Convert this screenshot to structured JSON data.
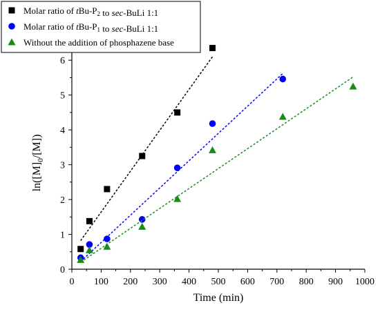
{
  "chart_data": {
    "type": "scatter",
    "xlabel": "Time (min)",
    "ylabel_parts": [
      "ln([M]",
      "0",
      "/[M])"
    ],
    "xlim": [
      0,
      1000
    ],
    "ylim": [
      0,
      6.5
    ],
    "xticks": [
      0,
      100,
      200,
      300,
      400,
      500,
      600,
      700,
      800,
      900,
      1000
    ],
    "yticks": [
      0,
      1,
      2,
      3,
      4,
      5,
      6
    ],
    "grid": false,
    "legend_position": "top-left",
    "series": [
      {
        "legend_parts": [
          {
            "t": "Molar ratio of "
          },
          {
            "t": "t",
            "italic": true
          },
          {
            "t": "Bu-P"
          },
          {
            "t": "2",
            "sub": true
          },
          {
            "t": " to "
          },
          {
            "t": "sec",
            "italic": true
          },
          {
            "t": "-BuLi 1:1"
          }
        ],
        "marker": "square",
        "color": "#000000",
        "x": [
          30,
          60,
          120,
          240,
          360,
          480
        ],
        "y": [
          0.58,
          1.38,
          2.3,
          3.25,
          4.5,
          6.35
        ],
        "fit": {
          "x": [
            30,
            480
          ],
          "y": [
            0.82,
            6.1
          ]
        }
      },
      {
        "legend_parts": [
          {
            "t": "Molar ratio of "
          },
          {
            "t": "t",
            "italic": true
          },
          {
            "t": "Bu-P"
          },
          {
            "t": "1",
            "sub": true
          },
          {
            "t": " to "
          },
          {
            "t": "sec",
            "italic": true
          },
          {
            "t": "-BuLi 1:1"
          }
        ],
        "marker": "circle",
        "color": "#0000ff",
        "x": [
          30,
          60,
          120,
          240,
          360,
          480,
          720
        ],
        "y": [
          0.33,
          0.71,
          0.87,
          1.43,
          2.91,
          4.18,
          5.46
        ],
        "fit": {
          "x": [
            30,
            720
          ],
          "y": [
            0.22,
            5.62
          ]
        }
      },
      {
        "legend_parts": [
          {
            "t": "Without the addition of phosphazene base"
          }
        ],
        "marker": "triangle",
        "color": "#1a8a1a",
        "x": [
          30,
          60,
          120,
          240,
          360,
          480,
          720,
          960
        ],
        "y": [
          0.27,
          0.55,
          0.65,
          1.22,
          2.02,
          3.42,
          4.38,
          5.25
        ],
        "fit": {
          "x": [
            30,
            960
          ],
          "y": [
            0.2,
            5.52
          ]
        }
      }
    ]
  }
}
